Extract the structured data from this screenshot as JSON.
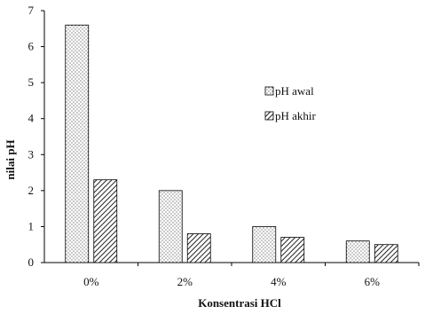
{
  "chart_data": {
    "type": "bar",
    "categories": [
      "0%",
      "2%",
      "4%",
      "6%"
    ],
    "series": [
      {
        "name": "pH awal",
        "values": [
          6.6,
          2.0,
          1.0,
          0.6
        ],
        "pattern": "dots"
      },
      {
        "name": "pH akhir",
        "values": [
          2.3,
          0.8,
          0.7,
          0.5
        ],
        "pattern": "hatch"
      }
    ],
    "xlabel": "Konsentrasi HCl",
    "ylabel": "nilai pH",
    "ylim": [
      0,
      7
    ],
    "yticks": [
      0,
      1,
      2,
      3,
      4,
      5,
      6,
      7
    ],
    "grid": false,
    "legend": "right-center",
    "colors": {
      "axis": "#000000",
      "bar_fill": "#ffffff",
      "pattern": "#333333"
    }
  }
}
